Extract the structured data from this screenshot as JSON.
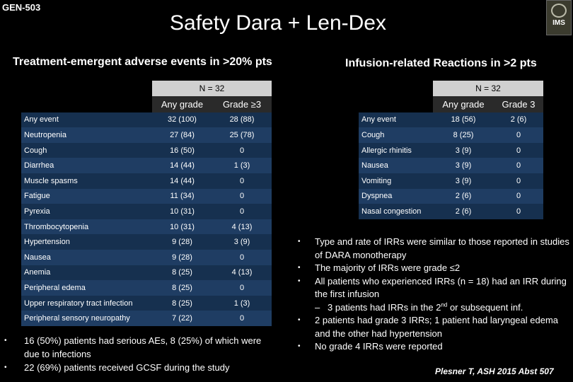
{
  "header": {
    "code": "GEN-503",
    "title": "Safety Dara + Len-Dex",
    "logo_text": "IMS"
  },
  "left": {
    "subtitle": "Treatment-emergent adverse events in >20% pts",
    "n_label": "N = 32",
    "col1": "Any grade",
    "col2": "Grade ≥3",
    "rows": [
      {
        "label": "Any event",
        "any": "32 (100)",
        "g3": "28 (88)"
      },
      {
        "label": "Neutropenia",
        "any": "27 (84)",
        "g3": "25 (78)"
      },
      {
        "label": "Cough",
        "any": "16 (50)",
        "g3": "0"
      },
      {
        "label": "Diarrhea",
        "any": "14 (44)",
        "g3": "1 (3)"
      },
      {
        "label": "Muscle spasms",
        "any": "14 (44)",
        "g3": "0"
      },
      {
        "label": "Fatigue",
        "any": "11 (34)",
        "g3": "0"
      },
      {
        "label": "Pyrexia",
        "any": "10 (31)",
        "g3": "0"
      },
      {
        "label": "Thrombocytopenia",
        "any": "10 (31)",
        "g3": "4 (13)"
      },
      {
        "label": "Hypertension",
        "any": "9 (28)",
        "g3": "3 (9)"
      },
      {
        "label": "Nausea",
        "any": "9 (28)",
        "g3": "0"
      },
      {
        "label": "Anemia",
        "any": "8 (25)",
        "g3": "4 (13)"
      },
      {
        "label": "Peripheral edema",
        "any": "8 (25)",
        "g3": "0"
      },
      {
        "label": "Upper respiratory tract infection",
        "any": "8 (25)",
        "g3": "1 (3)"
      },
      {
        "label": "Peripheral sensory neuropathy",
        "any": "7 (22)",
        "g3": "0"
      }
    ],
    "bullets": [
      "16 (50%) patients had serious AEs, 8 (25%) of which were due to infections",
      "22 (69%) patients received GCSF during the study"
    ]
  },
  "right": {
    "subtitle": "Infusion-related Reactions in >2 pts",
    "n_label": "N = 32",
    "col1": "Any grade",
    "col2": "Grade 3",
    "rows": [
      {
        "label": "Any event",
        "any": "18 (56)",
        "g3": "2 (6)"
      },
      {
        "label": "Cough",
        "any": "8 (25)",
        "g3": "0"
      },
      {
        "label": "Allergic rhinitis",
        "any": "3 (9)",
        "g3": "0"
      },
      {
        "label": "Nausea",
        "any": "3 (9)",
        "g3": "0"
      },
      {
        "label": "Vomiting",
        "any": "3 (9)",
        "g3": "0"
      },
      {
        "label": "Dyspnea",
        "any": "2 (6)",
        "g3": "0"
      },
      {
        "label": "Nasal congestion",
        "any": "2 (6)",
        "g3": "0"
      }
    ],
    "bullets": {
      "b1": "Type and rate of IRRs were similar to those reported in studies of DARA monotherapy",
      "b2": "The majority of IRRs were grade ≤2",
      "b3": "All patients who experienced IRRs (n = 18) had an IRR during the first infusion",
      "b3_sub_pre": "3 patients had IRRs in the 2",
      "b3_sub_sup": "nd",
      "b3_sub_post": " or subsequent inf.",
      "b4": "2 patients had grade 3 IRRs; 1 patient had laryngeal edema and the other had hypertension",
      "b5": "No grade 4 IRRs were reported"
    },
    "citation": "Plesner T, ASH 2015 Abst 507"
  }
}
